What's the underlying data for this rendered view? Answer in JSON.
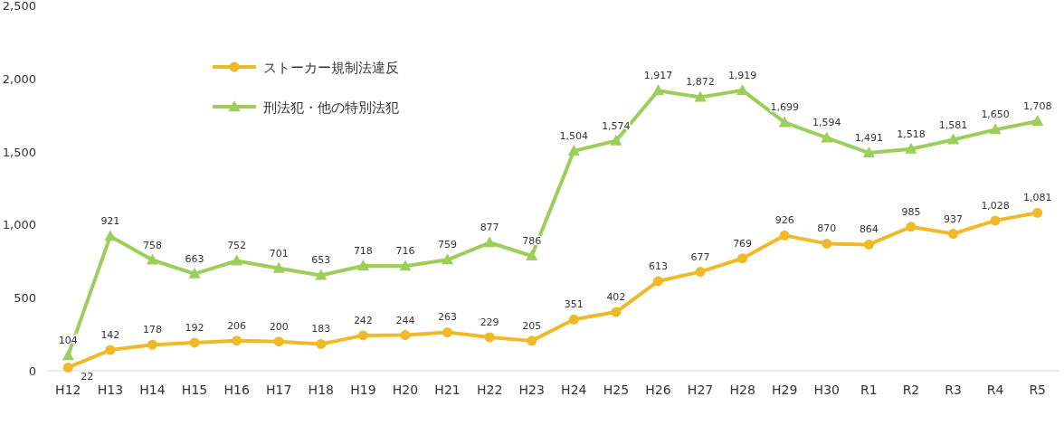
{
  "chart_data": {
    "type": "line",
    "categories": [
      "H12",
      "H13",
      "H14",
      "H15",
      "H16",
      "H17",
      "H18",
      "H19",
      "H20",
      "H21",
      "H22",
      "H23",
      "H24",
      "H25",
      "H26",
      "H27",
      "H28",
      "H29",
      "H30",
      "R1",
      "R2",
      "R3",
      "R4",
      "R5"
    ],
    "series": [
      {
        "name": "ストーカー規制法違反",
        "color": "#f0b928",
        "marker": "circle",
        "values": [
          22,
          142,
          178,
          192,
          206,
          200,
          183,
          242,
          244,
          263,
          229,
          205,
          351,
          402,
          613,
          677,
          769,
          926,
          870,
          864,
          985,
          937,
          1028,
          1081
        ],
        "value_labels": [
          "22",
          "142",
          "178",
          "192",
          "206",
          "200",
          "183",
          "242",
          "244",
          "263",
          "229",
          "205",
          "351",
          "402",
          "613",
          "677",
          "769",
          "926",
          "870",
          "864",
          "985",
          "937",
          "1,028",
          "1,081"
        ]
      },
      {
        "name": "刑法犯・他の特別法犯",
        "color": "#9dcd5a",
        "marker": "triangle",
        "values": [
          104,
          921,
          758,
          663,
          752,
          701,
          653,
          718,
          716,
          759,
          877,
          786,
          1504,
          1574,
          1917,
          1872,
          1919,
          1699,
          1594,
          1491,
          1518,
          1581,
          1650,
          1708
        ],
        "value_labels": [
          "104",
          "921",
          "758",
          "663",
          "752",
          "701",
          "653",
          "718",
          "716",
          "759",
          "877",
          "786",
          "1,504",
          "1,574",
          "1,917",
          "1,872",
          "1,919",
          "1,699",
          "1,594",
          "1,491",
          "1,518",
          "1,581",
          "1,650",
          "1,708"
        ]
      }
    ],
    "ylim": [
      0,
      2500
    ],
    "yticks": [
      0,
      500,
      {
        "value": 1000,
        "label": "1,000"
      },
      {
        "value": 1500,
        "label": "1,500"
      },
      {
        "value": 2000,
        "label": "2,000"
      },
      {
        "value": 2500,
        "label": "2,500"
      }
    ],
    "grid": false,
    "legend": "top left",
    "line_style": "solid"
  }
}
